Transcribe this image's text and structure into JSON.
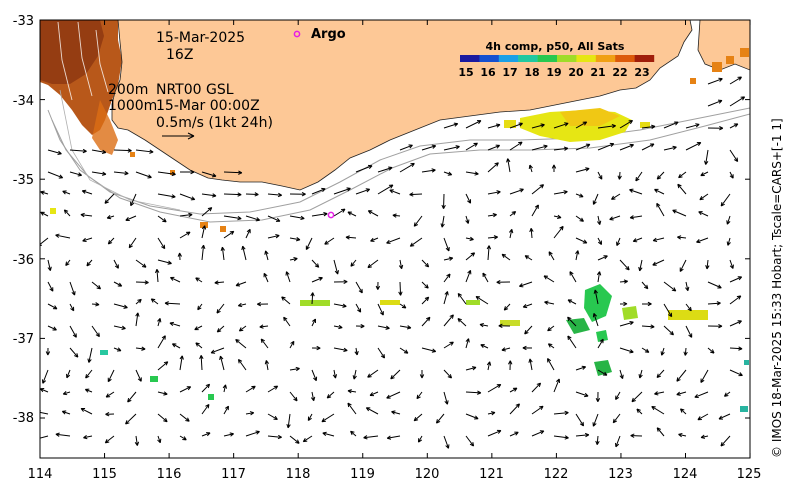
{
  "map": {
    "lon_ticks": [
      "114",
      "115",
      "116",
      "117",
      "118",
      "119",
      "120",
      "121",
      "122",
      "123",
      "124",
      "125"
    ],
    "lat_ticks": [
      "-33",
      "-34",
      "-35",
      "-36",
      "-37",
      "-38"
    ]
  },
  "annotations": {
    "date": "15-Mar-2025",
    "hour": "16Z",
    "isobath_200": "200m",
    "nrt_label": "NRT00 GSL",
    "isobath_1000": "1000m",
    "nrt_time": "15-Mar 00:00Z",
    "scale_label": "0.5m/s (1kt 24h)",
    "argo_label": "Argo"
  },
  "colorbar": {
    "title": "4h comp, p50, All Sats",
    "labels": [
      "15",
      "16",
      "17",
      "18",
      "19",
      "20",
      "21",
      "22",
      "23"
    ],
    "colors": [
      "#1a1aa0",
      "#1450d0",
      "#1aa0e6",
      "#20c8a0",
      "#28c850",
      "#a0dc28",
      "#e6e614",
      "#f0a014",
      "#dc5a0a",
      "#a01e0a"
    ]
  },
  "credit": "© IMOS 18-Mar-2025 15:33 Hobart; Tscale=CARS+[-1 1]",
  "colors": {
    "land": "#fdc896",
    "argo": "#e61ee6"
  }
}
